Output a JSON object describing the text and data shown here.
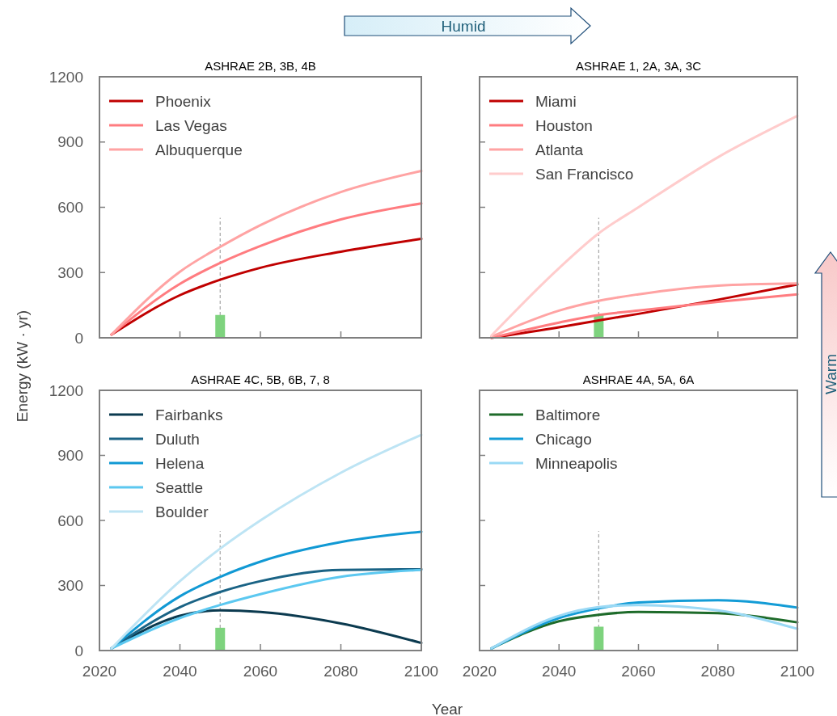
{
  "chart_data": [
    {
      "type": "line",
      "title": "ASHRAE 2B, 3B, 4B",
      "ylabel": "Energy (kW · yr)",
      "x": [
        2023,
        2040,
        2050,
        2060,
        2080,
        2100
      ],
      "xlim": [
        2020,
        2100
      ],
      "xticks": [
        2020,
        2040,
        2060,
        2080,
        2100
      ],
      "ylim": [
        0,
        1200
      ],
      "yticks": [
        0,
        300,
        600,
        900,
        1200
      ],
      "tick_labels": "y",
      "legend": "top left",
      "marker": "none",
      "grid": false,
      "ref_lines": [
        {
          "axis": "x",
          "value": 2050,
          "color": "#a6a6a6",
          "line_style": "dashed"
        }
      ],
      "annotations": [
        "Humid"
      ],
      "series": [
        {
          "name": "Phoenix",
          "color": "#c00000",
          "values": [
            15,
            196,
            267,
            322,
            396,
            455
          ]
        },
        {
          "name": "Las Vegas",
          "color": "#ff7c80",
          "values": [
            15,
            248,
            344,
            422,
            544,
            618
          ]
        },
        {
          "name": "Albuquerque",
          "color": "#ffa3a3",
          "values": [
            15,
            304,
            418,
            518,
            670,
            767
          ]
        },
        {
          "type": "bar",
          "color": "#7ed37e",
          "values": [
            null,
            null,
            105,
            null,
            null,
            null
          ]
        }
      ]
    },
    {
      "type": "line",
      "title": "ASHRAE 1, 2A, 3A, 3C",
      "x": [
        2023,
        2040,
        2050,
        2060,
        2080,
        2100
      ],
      "xlim": [
        2020,
        2100
      ],
      "xticks": [
        2020,
        2040,
        2060,
        2080,
        2100
      ],
      "ylim": [
        0,
        1200
      ],
      "yticks": [
        0,
        300,
        600,
        900,
        1200
      ],
      "tick_labels": false,
      "legend": "top left",
      "marker": "none",
      "grid": false,
      "ref_lines": [
        {
          "axis": "x",
          "value": 2050,
          "color": "#a6a6a6",
          "line_style": "dashed"
        }
      ],
      "annotations": [
        "Warm"
      ],
      "series": [
        {
          "name": "Miami",
          "color": "#c00000",
          "values": [
            0,
            48,
            80,
            110,
            175,
            245
          ]
        },
        {
          "name": "Houston",
          "color": "#ff7c80",
          "values": [
            0,
            70,
            105,
            125,
            165,
            200
          ]
        },
        {
          "name": "Atlanta",
          "color": "#ffa3a3",
          "values": [
            5,
            125,
            170,
            200,
            240,
            250
          ]
        },
        {
          "name": "San Francisco",
          "color": "#ffcccc",
          "values": [
            10,
            320,
            480,
            600,
            830,
            1020
          ]
        },
        {
          "type": "bar",
          "color": "#7ed37e",
          "values": [
            null,
            null,
            105,
            null,
            null,
            null
          ]
        }
      ]
    },
    {
      "type": "line",
      "title": "ASHRAE 4C, 5B, 6B, 7, 8",
      "xlabel": "Year",
      "x": [
        2023,
        2040,
        2050,
        2060,
        2080,
        2100
      ],
      "xlim": [
        2020,
        2100
      ],
      "xticks": [
        2020,
        2040,
        2060,
        2080,
        2100
      ],
      "ylim": [
        0,
        1200
      ],
      "yticks": [
        0,
        300,
        600,
        900,
        1200
      ],
      "legend": "top left",
      "marker": "none",
      "grid": false,
      "ref_lines": [
        {
          "axis": "x",
          "value": 2050,
          "color": "#a6a6a6",
          "line_style": "dashed"
        }
      ],
      "series": [
        {
          "name": "Fairbanks",
          "color": "#0b3a4f",
          "values": [
            10,
            160,
            185,
            178,
            125,
            35
          ]
        },
        {
          "name": "Duluth",
          "color": "#1a6385",
          "values": [
            10,
            200,
            270,
            320,
            372,
            375
          ]
        },
        {
          "name": "Helena",
          "color": "#1199d4",
          "values": [
            10,
            250,
            340,
            410,
            500,
            548
          ]
        },
        {
          "name": "Seattle",
          "color": "#5cc8f0",
          "values": [
            10,
            150,
            210,
            260,
            340,
            372
          ]
        },
        {
          "name": "Boulder",
          "color": "#bde4f4",
          "values": [
            10,
            320,
            470,
            600,
            820,
            995
          ]
        },
        {
          "type": "bar",
          "color": "#7ed37e",
          "values": [
            null,
            null,
            105,
            null,
            null,
            null
          ]
        }
      ]
    },
    {
      "type": "line",
      "title": "ASHRAE 4A, 5A, 6A",
      "x": [
        2023,
        2040,
        2050,
        2060,
        2080,
        2100
      ],
      "xlim": [
        2020,
        2100
      ],
      "xticks": [
        2020,
        2040,
        2060,
        2080,
        2100
      ],
      "ylim": [
        0,
        1200
      ],
      "yticks": [
        0,
        300,
        600,
        900,
        1200
      ],
      "tick_labels": "x",
      "legend": "top left",
      "marker": "none",
      "grid": false,
      "ref_lines": [
        {
          "axis": "x",
          "value": 2050,
          "color": "#a6a6a6",
          "line_style": "dashed"
        }
      ],
      "series": [
        {
          "name": "Baltimore",
          "color": "#1e6b2a",
          "values": [
            10,
            135,
            165,
            178,
            172,
            130
          ]
        },
        {
          "name": "Chicago",
          "color": "#139cd6",
          "values": [
            10,
            150,
            195,
            222,
            232,
            198
          ]
        },
        {
          "name": "Minneapolis",
          "color": "#9ad9f5",
          "values": [
            10,
            160,
            200,
            210,
            185,
            100
          ]
        },
        {
          "type": "bar",
          "color": "#7ed37e",
          "values": [
            null,
            null,
            110,
            null,
            null,
            null
          ]
        }
      ]
    }
  ]
}
